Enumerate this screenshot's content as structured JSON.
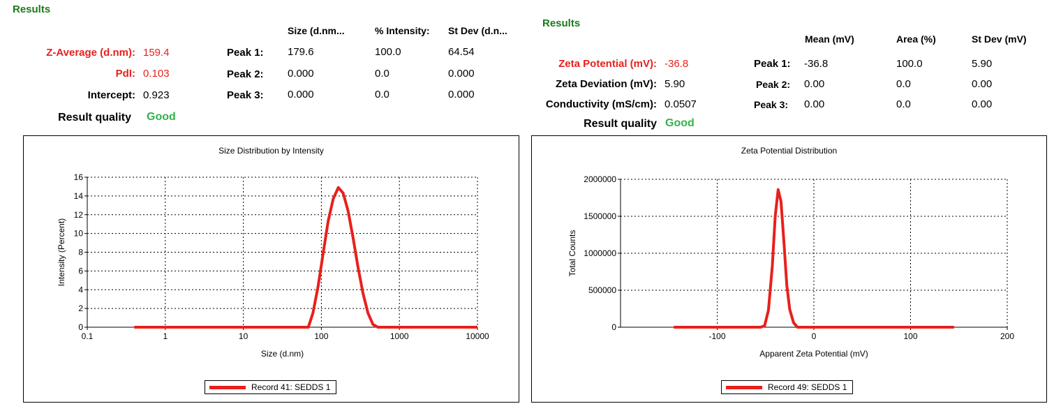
{
  "size_results": {
    "title": "Results",
    "col_headers": [
      "Size (d.nm...",
      "% Intensity:",
      "St Dev (d.n..."
    ],
    "z_average_label": "Z-Average (d.nm):",
    "z_average_value": "159.4",
    "pdi_label": "PdI:",
    "pdi_value": "0.103",
    "intercept_label": "Intercept:",
    "intercept_value": "0.923",
    "quality_label": "Result quality",
    "quality_value": "Good",
    "peaks": [
      {
        "label": "Peak 1:",
        "size": "179.6",
        "intensity": "100.0",
        "stdev": "64.54"
      },
      {
        "label": "Peak 2:",
        "size": "0.000",
        "intensity": "0.0",
        "stdev": "0.000"
      },
      {
        "label": "Peak 3:",
        "size": "0.000",
        "intensity": "0.0",
        "stdev": "0.000"
      }
    ]
  },
  "zeta_results": {
    "title": "Results",
    "col_headers": [
      "Mean (mV)",
      "Area (%)",
      "St Dev (mV)"
    ],
    "zeta_potential_label": "Zeta Potential (mV):",
    "zeta_potential_value": "-36.8",
    "zeta_deviation_label": "Zeta Deviation (mV):",
    "zeta_deviation_value": "5.90",
    "conductivity_label": "Conductivity (mS/cm):",
    "conductivity_value": "0.0507",
    "quality_label": "Result quality",
    "quality_value": "Good",
    "peaks": [
      {
        "label": "Peak 1:",
        "mean": "-36.8",
        "area": "100.0",
        "stdev": "5.90"
      },
      {
        "label": "Peak 2:",
        "mean": "0.00",
        "area": "0.0",
        "stdev": "0.00"
      },
      {
        "label": "Peak 3:",
        "mean": "0.00",
        "area": "0.0",
        "stdev": "0.00"
      }
    ]
  },
  "colors": {
    "series": "#e8201c",
    "header_green": "#1a7a1a",
    "good_green": "#33b24a",
    "label_red": "#e8201c"
  },
  "chart_data": [
    {
      "type": "line",
      "title": "Size Distribution by Intensity",
      "xlabel": "Size (d.nm)",
      "ylabel": "Intensity (Percent)",
      "xscale": "log",
      "xlim": [
        0.1,
        10000
      ],
      "ylim": [
        0,
        16
      ],
      "xticks": [
        0.1,
        1,
        10,
        100,
        1000,
        10000
      ],
      "xtick_labels": [
        "0.1",
        "1",
        "10",
        "100",
        "1000",
        "10000"
      ],
      "yticks": [
        0,
        2,
        4,
        6,
        8,
        10,
        12,
        14,
        16
      ],
      "ytick_labels": [
        "0",
        "2",
        "4",
        "6",
        "8",
        "10",
        "12",
        "14",
        "16"
      ],
      "grid": true,
      "legend": "bottom-center",
      "series": [
        {
          "name": "Record 41: SEDDS 1",
          "x": [
            0.4,
            68,
            78,
            91,
            106,
            122,
            142,
            165,
            190,
            220,
            255,
            295,
            342,
            396,
            458,
            530,
            1000,
            10000
          ],
          "y": [
            0,
            0,
            1.5,
            4.4,
            8.0,
            11.3,
            13.7,
            14.9,
            14.3,
            12.4,
            9.5,
            6.4,
            3.6,
            1.5,
            0.3,
            0,
            0,
            0
          ]
        }
      ]
    },
    {
      "type": "line",
      "title": "Zeta Potential Distribution",
      "xlabel": "Apparent Zeta Potential (mV)",
      "ylabel": "Total Counts",
      "xlim": [
        -200,
        200
      ],
      "ylim": [
        0,
        2000000
      ],
      "xticks": [
        -100,
        0,
        100,
        200
      ],
      "xtick_labels": [
        "-100",
        "0",
        "100",
        "200"
      ],
      "yticks": [
        0,
        500000,
        1000000,
        1500000,
        2000000
      ],
      "ytick_labels": [
        "0",
        "500000",
        "1000000",
        "1500000",
        "2000000"
      ],
      "grid": true,
      "legend": "bottom-center",
      "series": [
        {
          "name": "Record 49: SEDDS 1",
          "x": [
            -145,
            -55,
            -51,
            -47,
            -43,
            -40,
            -37,
            -34,
            -31,
            -28,
            -25,
            -21,
            -17,
            145
          ],
          "y": [
            0,
            0,
            20000,
            230000,
            820000,
            1500000,
            1860000,
            1700000,
            1150000,
            570000,
            240000,
            60000,
            0,
            0
          ]
        }
      ]
    }
  ]
}
